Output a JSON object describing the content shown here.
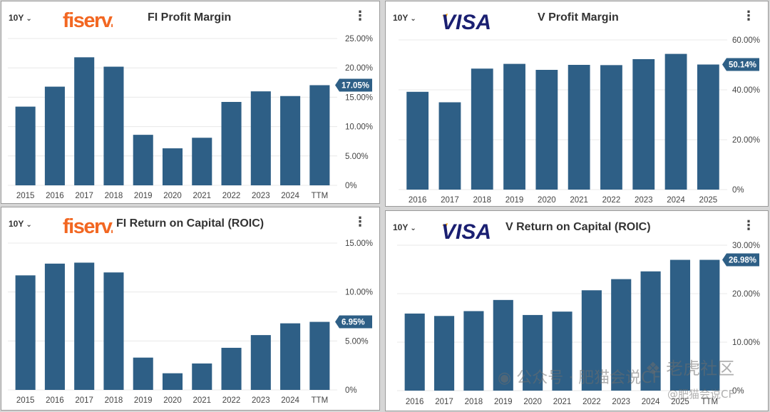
{
  "theme": {
    "bar": "#2e5f86",
    "grid": "#e8e8e8",
    "axis_text": "#444444",
    "badge": "#2e5f86",
    "badge_text": "#ffffff"
  },
  "watermark": {
    "left_text": "公众号 · 肥猫会说CF",
    "tiger_text": "老虎社区",
    "handle": "@肥猫会说CF"
  },
  "panels": [
    {
      "range_label": "10Y",
      "logo": {
        "text": "fiserv.",
        "color": "#f26722"
      },
      "title": "FI Profit Margin",
      "menu_icon": "more-vertical-icon",
      "chart_data": {
        "type": "bar",
        "title": "FI Profit Margin",
        "categories": [
          "2015",
          "2016",
          "2017",
          "2018",
          "2019",
          "2020",
          "2021",
          "2022",
          "2023",
          "2024",
          "TTM"
        ],
        "values": [
          13.4,
          16.8,
          21.8,
          20.2,
          8.6,
          6.3,
          8.1,
          14.2,
          16.0,
          15.2,
          17.05
        ],
        "ylim": [
          0,
          25
        ],
        "yticks": [
          0,
          5,
          10,
          15,
          20,
          25
        ],
        "ytick_labels": [
          "0%",
          "5.00%",
          "10.00%",
          "15.00%",
          "20.00%",
          "25.00%"
        ],
        "current_label": "17.05%",
        "current_value": 17.05,
        "grid": true
      }
    },
    {
      "range_label": "10Y",
      "logo": {
        "text": "VISA",
        "color": "#1a1f71",
        "swoosh": "#f7a600"
      },
      "title": "V Profit Margin",
      "menu_icon": "more-vertical-icon",
      "chart_data": {
        "type": "bar",
        "title": "V Profit Margin",
        "categories": [
          "2016",
          "2017",
          "2018",
          "2019",
          "2020",
          "2021",
          "2022",
          "2023",
          "2024",
          "2025"
        ],
        "values": [
          39.2,
          35.0,
          48.5,
          50.4,
          48.0,
          50.0,
          49.9,
          52.3,
          54.4,
          50.14
        ],
        "ylim": [
          0,
          60
        ],
        "yticks": [
          0,
          20,
          40,
          60
        ],
        "ytick_labels": [
          "0%",
          "20.00%",
          "40.00%",
          "60.00%"
        ],
        "current_label": "50.14%",
        "current_value": 50.14,
        "grid": true
      }
    },
    {
      "range_label": "10Y",
      "logo": {
        "text": "fiserv.",
        "color": "#f26722"
      },
      "title": "FI Return on Capital (ROIC)",
      "menu_icon": "more-vertical-icon",
      "chart_data": {
        "type": "bar",
        "title": "FI Return on Capital (ROIC)",
        "categories": [
          "2015",
          "2016",
          "2017",
          "2018",
          "2019",
          "2020",
          "2021",
          "2022",
          "2023",
          "2024",
          "TTM"
        ],
        "values": [
          11.7,
          12.9,
          13.0,
          12.0,
          3.3,
          1.7,
          2.7,
          4.3,
          5.6,
          6.8,
          6.95
        ],
        "ylim": [
          0,
          15
        ],
        "yticks": [
          0,
          5,
          10,
          15
        ],
        "ytick_labels": [
          "0%",
          "5.00%",
          "10.00%",
          "15.00%"
        ],
        "current_label": "6.95%",
        "current_value": 6.95,
        "grid": true
      }
    },
    {
      "range_label": "10Y",
      "logo": {
        "text": "VISA",
        "color": "#1a1f71",
        "swoosh": "#f7a600"
      },
      "title": "V Return on Capital (ROIC)",
      "menu_icon": "more-vertical-icon",
      "chart_data": {
        "type": "bar",
        "title": "V Return on Capital (ROIC)",
        "categories": [
          "2016",
          "2017",
          "2018",
          "2019",
          "2020",
          "2021",
          "2022",
          "2023",
          "2024",
          "2025",
          "TTM"
        ],
        "values": [
          15.9,
          15.4,
          16.4,
          18.7,
          15.6,
          16.3,
          20.7,
          23.0,
          24.6,
          26.98,
          26.98
        ],
        "ylim": [
          0,
          30
        ],
        "yticks": [
          0,
          10,
          20,
          30
        ],
        "ytick_labels": [
          "0%",
          "10.00%",
          "20.00%",
          "30.00%"
        ],
        "current_label": "26.98%",
        "current_value": 26.98,
        "grid": true
      }
    }
  ]
}
